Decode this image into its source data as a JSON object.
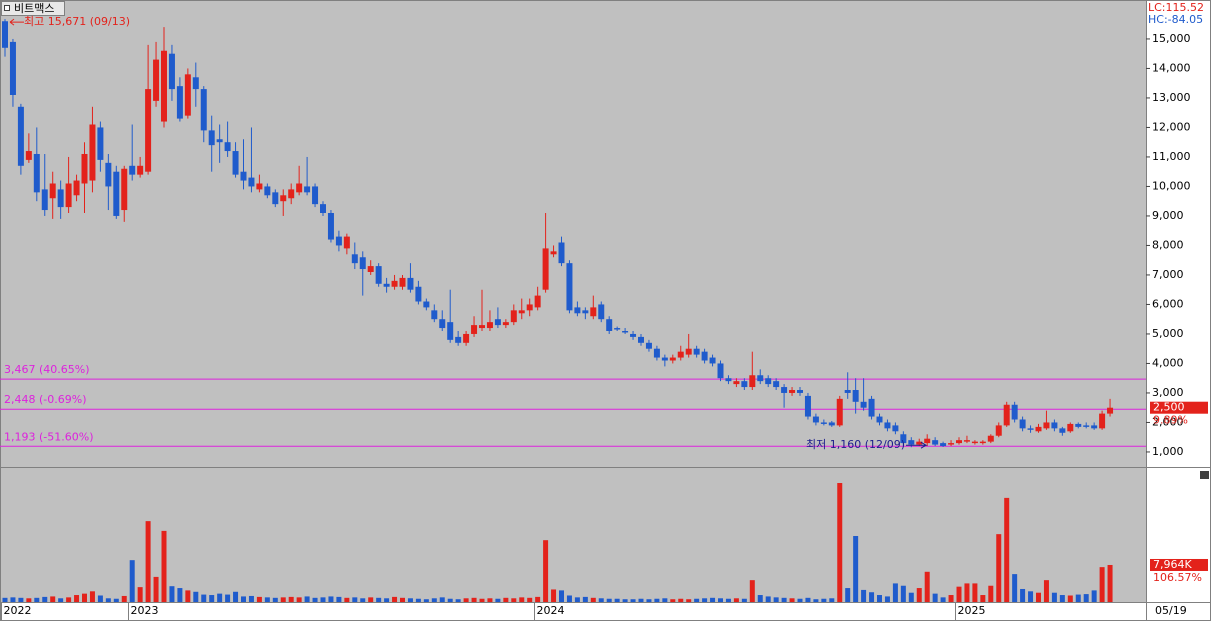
{
  "window_title": "비트맥스",
  "chart_data": [
    {
      "type": "candlestick",
      "up_color": "#e3221b",
      "down_color": "#1f5bcc",
      "level_color": "#dd22dd",
      "ylim": [
        490,
        16320
      ],
      "yticks": [
        {
          "value": 1000,
          "label": "1,000"
        },
        {
          "value": 2000,
          "label": "2,000"
        },
        {
          "value": 3000,
          "label": "3,000"
        },
        {
          "value": 4000,
          "label": "4,000"
        },
        {
          "value": 5000,
          "label": "5,000"
        },
        {
          "value": 6000,
          "label": "6,000"
        },
        {
          "value": 7000,
          "label": "7,000"
        },
        {
          "value": 8000,
          "label": "8,000"
        },
        {
          "value": 9000,
          "label": "9,000"
        },
        {
          "value": 10000,
          "label": "10,000"
        },
        {
          "value": 11000,
          "label": "11,000"
        },
        {
          "value": 12000,
          "label": "12,000"
        },
        {
          "value": 13000,
          "label": "13,000"
        },
        {
          "value": 14000,
          "label": "14,000"
        },
        {
          "value": 15000,
          "label": "15,000"
        }
      ],
      "open": [
        15600,
        14900,
        12700,
        10900,
        11100,
        9900,
        9600,
        9900,
        9300,
        9700,
        10100,
        10200,
        12000,
        10800,
        10500,
        9200,
        10700,
        10400,
        10500,
        12900,
        12200,
        14500,
        13400,
        12400,
        13700,
        13300,
        11900,
        11600,
        11500,
        11200,
        10500,
        10300,
        9900,
        10000,
        9800,
        9500,
        9600,
        9800,
        10000,
        10000,
        9400,
        9100,
        8300,
        7900,
        7700,
        7600,
        7100,
        7300,
        6700,
        6600,
        6600,
        6900,
        6600,
        6100,
        5800,
        5500,
        5400,
        4900,
        4700,
        5000,
        5200,
        5200,
        5500,
        5300,
        5400,
        5700,
        5800,
        5900,
        6500,
        7700,
        8100,
        7400,
        5900,
        5800,
        5600,
        6000,
        5500,
        5200,
        5100,
        5000,
        4900,
        4700,
        4500,
        4200,
        4100,
        4200,
        4300,
        4500,
        4400,
        4200,
        4000,
        3500,
        3300,
        3400,
        3200,
        3600,
        3500,
        3400,
        3200,
        3000,
        3100,
        2900,
        2200,
        2000,
        2000,
        1900,
        3100,
        3100,
        2700,
        2800,
        2200,
        2000,
        1900,
        1600,
        1400,
        1250,
        1300,
        1400,
        1300,
        1250,
        1300,
        1350,
        1300,
        1300,
        1350,
        1550,
        1900,
        2600,
        2100,
        1800,
        1700,
        1800,
        2000,
        1800,
        1700,
        1950,
        1900,
        1900,
        1800,
        2300
      ],
      "high": [
        15671,
        15000,
        12800,
        11800,
        12000,
        11100,
        10500,
        10200,
        11000,
        10400,
        11500,
        12700,
        12200,
        11100,
        10700,
        10700,
        12100,
        11000,
        14800,
        14900,
        15400,
        14800,
        13700,
        14000,
        14200,
        13400,
        12400,
        12100,
        12200,
        11500,
        11600,
        12000,
        10400,
        10100,
        9900,
        9900,
        10100,
        10700,
        11000,
        10100,
        9500,
        9200,
        8500,
        8400,
        8100,
        7800,
        7500,
        7400,
        6900,
        7000,
        7000,
        7400,
        6800,
        6200,
        6000,
        5800,
        6500,
        5100,
        5100,
        5600,
        6500,
        5800,
        5900,
        5500,
        6000,
        6200,
        6200,
        6600,
        9100,
        8000,
        8300,
        7500,
        6100,
        5900,
        6300,
        6100,
        5600,
        5250,
        5200,
        5100,
        5000,
        4800,
        4600,
        4300,
        4300,
        4600,
        5000,
        4600,
        4500,
        4300,
        4100,
        3600,
        3500,
        3500,
        4400,
        3800,
        3600,
        3500,
        3300,
        3200,
        3200,
        3000,
        2300,
        2100,
        2050,
        2900,
        3700,
        3500,
        3500,
        2900,
        2300,
        2100,
        2000,
        1700,
        1500,
        1450,
        1600,
        1500,
        1350,
        1400,
        1500,
        1550,
        1400,
        1400,
        1600,
        2000,
        2700,
        2700,
        2200,
        1900,
        1950,
        2400,
        2100,
        1850,
        2000,
        2000,
        2000,
        2000,
        2400,
        2800
      ],
      "low": [
        14400,
        12700,
        10400,
        10800,
        9500,
        9000,
        8900,
        8900,
        9100,
        9500,
        9100,
        9800,
        10500,
        9200,
        8900,
        8800,
        10200,
        10300,
        10400,
        12700,
        12000,
        12900,
        12200,
        12300,
        12700,
        11500,
        10500,
        10800,
        11000,
        10300,
        9900,
        9800,
        9800,
        9600,
        9300,
        9000,
        9400,
        9700,
        9700,
        9300,
        9000,
        8100,
        7800,
        7700,
        7200,
        6300,
        7000,
        6600,
        6400,
        6500,
        6500,
        6400,
        6000,
        5800,
        5400,
        5100,
        4700,
        4600,
        4600,
        4900,
        5100,
        5100,
        5200,
        5200,
        5300,
        5500,
        5600,
        5800,
        6400,
        7600,
        7300,
        5700,
        5600,
        5500,
        5500,
        5400,
        5000,
        5100,
        5000,
        4800,
        4600,
        4400,
        4100,
        3900,
        4000,
        4100,
        4200,
        4200,
        4000,
        3900,
        3400,
        3300,
        3200,
        3100,
        3100,
        3300,
        3200,
        3100,
        2500,
        2900,
        2900,
        2100,
        1900,
        1900,
        1850,
        1850,
        2800,
        2300,
        2400,
        2100,
        1900,
        1700,
        1600,
        1200,
        1160,
        1200,
        1200,
        1200,
        1170,
        1200,
        1250,
        1300,
        1250,
        1250,
        1300,
        1500,
        1850,
        2000,
        1700,
        1650,
        1650,
        1750,
        1700,
        1550,
        1650,
        1800,
        1800,
        1750,
        1750,
        2200
      ],
      "close": [
        14700,
        13100,
        10700,
        11200,
        9800,
        9200,
        10100,
        9300,
        10100,
        10200,
        11100,
        12100,
        10900,
        10000,
        9000,
        10600,
        10400,
        10700,
        13300,
        14300,
        14600,
        13300,
        12300,
        13800,
        13300,
        11900,
        11400,
        11500,
        11200,
        10400,
        10200,
        10000,
        10100,
        9700,
        9400,
        9700,
        9900,
        10100,
        9800,
        9400,
        9100,
        8200,
        8000,
        8300,
        7400,
        7200,
        7300,
        6700,
        6600,
        6800,
        6900,
        6500,
        6100,
        5900,
        5500,
        5200,
        4800,
        4700,
        5000,
        5300,
        5300,
        5400,
        5300,
        5400,
        5800,
        5800,
        6000,
        6300,
        7900,
        7800,
        7400,
        5800,
        5700,
        5700,
        5900,
        5500,
        5100,
        5150,
        5050,
        4900,
        4700,
        4500,
        4200,
        4100,
        4200,
        4400,
        4500,
        4300,
        4100,
        4000,
        3500,
        3400,
        3400,
        3200,
        3600,
        3400,
        3300,
        3200,
        3000,
        3100,
        3000,
        2200,
        2000,
        1950,
        1900,
        2800,
        3000,
        2700,
        2500,
        2200,
        2000,
        1800,
        1700,
        1300,
        1250,
        1350,
        1450,
        1250,
        1200,
        1300,
        1400,
        1400,
        1350,
        1350,
        1550,
        1900,
        2600,
        2100,
        1800,
        1750,
        1850,
        2000,
        1800,
        1650,
        1950,
        1850,
        1850,
        1800,
        2300,
        2500
      ],
      "levels": [
        {
          "value": 3467,
          "label": "3,467 (40.65%)"
        },
        {
          "value": 2448,
          "label": "2,448 (-0.69%)"
        },
        {
          "value": 1193,
          "label": "1,193 (-51.60%)"
        }
      ],
      "annotations": [
        {
          "value": 15671,
          "text": "최고 15,671 (09/13)",
          "color": "#e3221b"
        },
        {
          "value": 1160,
          "text": "최저 1,160 (12/09)",
          "color": "#1c1c8c"
        }
      ],
      "indicators": [
        {
          "text": "LC:115.52",
          "color": "#e3221b"
        },
        {
          "text": "HC:-84.05",
          "color": "#1f5bcc"
        }
      ],
      "last": {
        "value": 2500,
        "label": "2,500"
      },
      "last_change": "9.89%"
    },
    {
      "type": "bar",
      "ylim": [
        0,
        28400
      ],
      "categories": [
        "2022",
        null,
        null,
        null,
        null,
        null,
        null,
        null,
        null,
        null,
        null,
        null,
        null,
        null,
        null,
        null,
        "2023",
        null,
        null,
        null,
        null,
        null,
        null,
        null,
        null,
        null,
        null,
        null,
        null,
        null,
        null,
        null,
        null,
        null,
        null,
        null,
        null,
        null,
        null,
        null,
        null,
        null,
        null,
        null,
        null,
        null,
        null,
        null,
        null,
        null,
        null,
        null,
        null,
        null,
        null,
        null,
        null,
        null,
        null,
        null,
        null,
        null,
        null,
        null,
        null,
        null,
        null,
        "2024",
        null,
        null,
        null,
        null,
        null,
        null,
        null,
        null,
        null,
        null,
        null,
        null,
        null,
        null,
        null,
        null,
        null,
        null,
        null,
        null,
        null,
        null,
        null,
        null,
        null,
        null,
        null,
        null,
        null,
        null,
        null,
        null,
        null,
        null,
        null,
        null,
        null,
        null,
        null,
        null,
        null,
        null,
        null,
        null,
        null,
        null,
        null,
        null,
        null,
        null,
        null,
        null,
        "2025",
        null,
        null,
        null,
        null,
        null,
        null,
        null,
        null,
        null,
        null,
        null,
        null,
        null,
        null,
        null,
        null,
        null,
        null,
        null
      ],
      "values": [
        900,
        1000,
        900,
        800,
        900,
        1100,
        1200,
        800,
        1000,
        1500,
        1800,
        2300,
        1400,
        800,
        700,
        1300,
        9000,
        3200,
        17400,
        5400,
        15300,
        3400,
        3000,
        2500,
        2200,
        1600,
        1500,
        1800,
        1600,
        2200,
        1200,
        1300,
        1100,
        1000,
        900,
        1000,
        1100,
        1000,
        1200,
        900,
        1000,
        1200,
        1100,
        900,
        1000,
        800,
        1000,
        900,
        800,
        1100,
        900,
        800,
        700,
        600,
        800,
        1000,
        700,
        600,
        800,
        900,
        700,
        800,
        700,
        900,
        800,
        1000,
        900,
        1100,
        13300,
        2700,
        2500,
        1400,
        1000,
        1100,
        900,
        800,
        700,
        700,
        600,
        600,
        700,
        600,
        700,
        800,
        600,
        700,
        600,
        700,
        800,
        900,
        800,
        700,
        800,
        700,
        4700,
        1500,
        1200,
        1000,
        900,
        800,
        700,
        900,
        600,
        700,
        800,
        25600,
        3000,
        14200,
        2600,
        2100,
        1500,
        1200,
        4000,
        3500,
        2000,
        3000,
        6500,
        1800,
        1000,
        1500,
        3300,
        4000,
        4000,
        1500,
        3500,
        14600,
        22400,
        6000,
        2800,
        2300,
        2000,
        4700,
        2000,
        1500,
        1400,
        1600,
        1700,
        2500,
        7500,
        7964
      ],
      "last": {
        "value": 7964,
        "label": "7,964K"
      },
      "last_change": "106.57%",
      "date": "05/19"
    }
  ]
}
